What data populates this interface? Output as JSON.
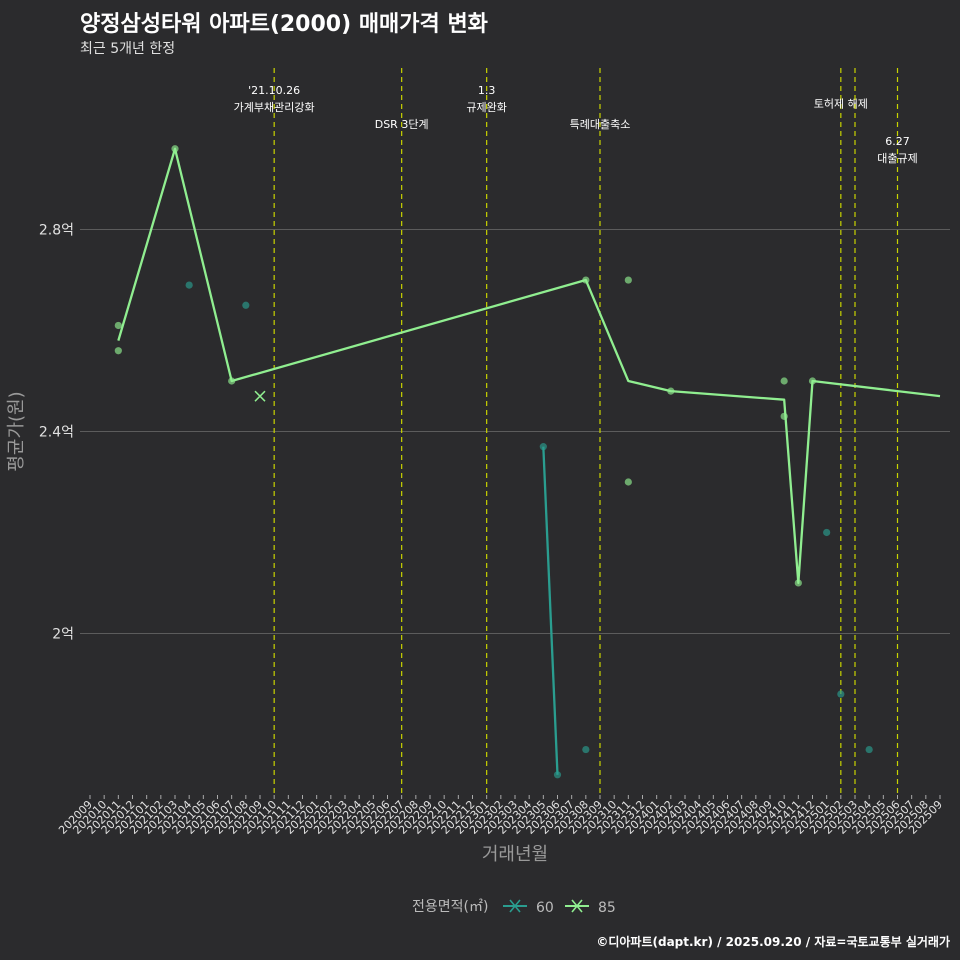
{
  "chart_data": {
    "type": "line",
    "title": "양정삼성타워 아파트(2000) 매매가격 변화",
    "subtitle": "최근 5개년 한정",
    "xlabel": "거래년월",
    "ylabel": "평균가(원)",
    "categories": [
      "202009",
      "202010",
      "202011",
      "202012",
      "202101",
      "202102",
      "202103",
      "202104",
      "202105",
      "202106",
      "202107",
      "202108",
      "202109",
      "202110",
      "202111",
      "202112",
      "202201",
      "202202",
      "202203",
      "202204",
      "202205",
      "202206",
      "202207",
      "202208",
      "202209",
      "202210",
      "202211",
      "202212",
      "202301",
      "202302",
      "202303",
      "202304",
      "202305",
      "202306",
      "202307",
      "202308",
      "202309",
      "202310",
      "202311",
      "202312",
      "202401",
      "202402",
      "202403",
      "202404",
      "202405",
      "202406",
      "202407",
      "202408",
      "202409",
      "202410",
      "202411",
      "202412",
      "202501",
      "202502",
      "202503",
      "202504",
      "202505",
      "202506",
      "202507",
      "202508",
      "202509"
    ],
    "y_ticks": [
      {
        "value": 2.0,
        "label": "2억"
      },
      {
        "value": 2.4,
        "label": "2.4억"
      },
      {
        "value": 2.8,
        "label": "2.8억"
      }
    ],
    "ylim": [
      1.68,
      3.12
    ],
    "grid": true,
    "legend": {
      "title": "전용면적(㎡)",
      "position": "bottom"
    },
    "series": [
      {
        "name": "60",
        "color": "#2a9d8f",
        "line": [
          {
            "x": "202305",
            "y": 2.37
          },
          {
            "x": "202306",
            "y": 1.72
          }
        ],
        "points": [
          {
            "x": "202104",
            "y": 2.69
          },
          {
            "x": "202108",
            "y": 2.65
          },
          {
            "x": "202305",
            "y": 2.37
          },
          {
            "x": "202306",
            "y": 1.72
          },
          {
            "x": "202308",
            "y": 1.77
          },
          {
            "x": "202501",
            "y": 2.2
          },
          {
            "x": "202502",
            "y": 1.88
          },
          {
            "x": "202504",
            "y": 1.77
          }
        ],
        "markers": []
      },
      {
        "name": "85",
        "color": "#90ee90",
        "line": [
          {
            "x": "202011",
            "y": 2.58
          },
          {
            "x": "202103",
            "y": 2.96
          },
          {
            "x": "202107",
            "y": 2.5
          },
          {
            "x": "202308",
            "y": 2.7
          },
          {
            "x": "202311",
            "y": 2.5
          },
          {
            "x": "202402",
            "y": 2.48
          },
          {
            "x": "202410",
            "y": 2.463
          },
          {
            "x": "202411",
            "y": 2.1
          },
          {
            "x": "202412",
            "y": 2.5
          },
          {
            "x": "202509",
            "y": 2.47
          }
        ],
        "points": [
          {
            "x": "202011",
            "y": 2.61
          },
          {
            "x": "202011",
            "y": 2.56
          },
          {
            "x": "202103",
            "y": 2.96
          },
          {
            "x": "202107",
            "y": 2.5
          },
          {
            "x": "202308",
            "y": 2.7
          },
          {
            "x": "202311",
            "y": 2.7
          },
          {
            "x": "202311",
            "y": 2.3
          },
          {
            "x": "202402",
            "y": 2.48
          },
          {
            "x": "202410",
            "y": 2.5
          },
          {
            "x": "202410",
            "y": 2.43
          },
          {
            "x": "202411",
            "y": 2.1
          },
          {
            "x": "202412",
            "y": 2.5
          }
        ],
        "markers": [
          {
            "x": "202109",
            "y": 2.47
          }
        ]
      }
    ],
    "events": [
      {
        "x": "202110",
        "lines": [
          "'21.10.26",
          "가계부채관리강화"
        ],
        "row": 0
      },
      {
        "x": "202207",
        "lines": [
          "DSR 3단계"
        ],
        "row": 1
      },
      {
        "x": "202301",
        "lines": [
          "1.3",
          "규제완화"
        ],
        "row": 0
      },
      {
        "x": "202309",
        "lines": [
          "특례대출축소"
        ],
        "row": 1
      },
      {
        "x": "202502",
        "lines": [
          "토허제 해제"
        ],
        "row": 0.4
      },
      {
        "x": "202503",
        "lines": [],
        "row": 0
      },
      {
        "x": "202506",
        "lines": [
          "6.27",
          "대출규제"
        ],
        "row": 1.5
      }
    ]
  },
  "footer": "©디아파트(dapt.kr) / 2025.09.20 / 자료=국토교통부 실거래가"
}
